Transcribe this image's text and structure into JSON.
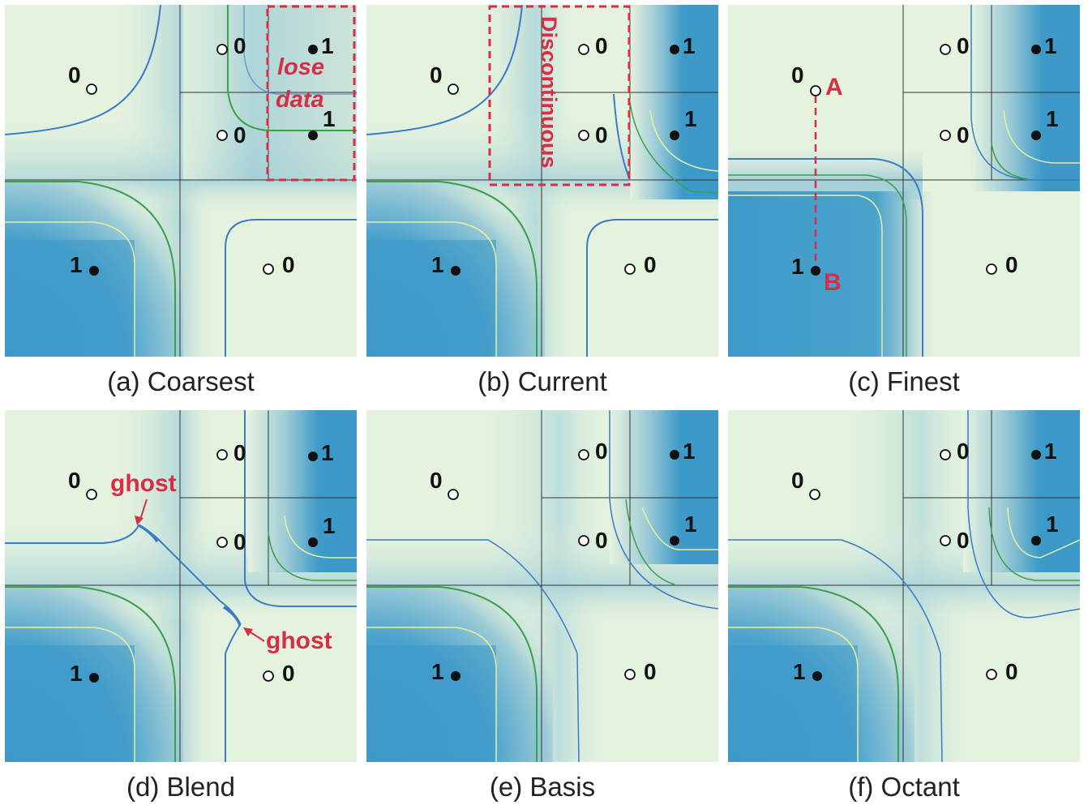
{
  "panels": [
    {
      "caption": "(a) Coarsest"
    },
    {
      "caption": "(b) Current"
    },
    {
      "caption": "(c) Finest"
    },
    {
      "caption": "(d) Blend"
    },
    {
      "caption": "(e) Basis"
    },
    {
      "caption": "(f) Octant"
    }
  ],
  "point_values": {
    "zero": "0",
    "one": "1"
  },
  "annotations": {
    "lose_data_line1": "lose",
    "lose_data_line2": "data",
    "discontinuous": "Discontinuous",
    "point_a": "A",
    "point_b": "B",
    "ghost": "ghost"
  },
  "colors": {
    "low_value": "#e4f2de",
    "high_value": "#3d9ac8",
    "contour_blue": "#3a7ac8",
    "contour_green": "#3aa04a",
    "contour_yellow": "#e8f0a0",
    "annotation_red": "#d62e45"
  }
}
